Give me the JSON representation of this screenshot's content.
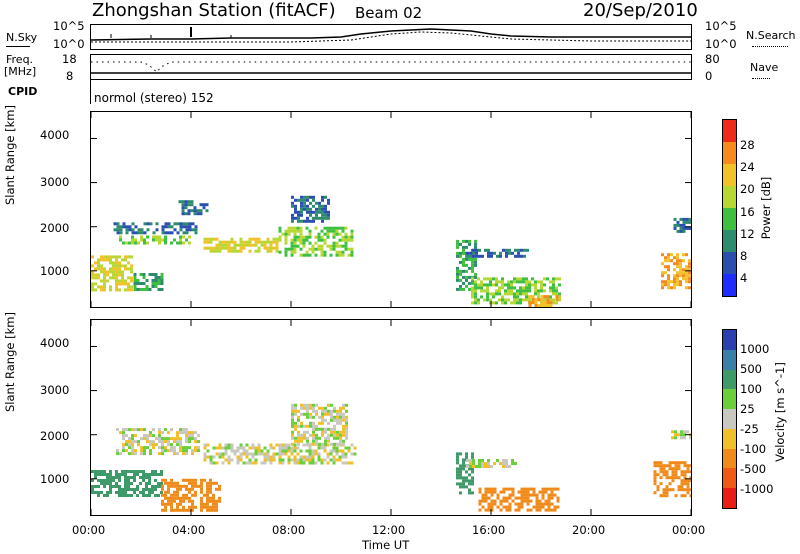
{
  "header": {
    "title": "Zhongshan Station (fitACF)",
    "beam": "Beam 02",
    "date": "20/Sep/2010"
  },
  "top_panels": {
    "nsky_label": "N.Sky",
    "nsearch_label": "N.Search",
    "nsky_ticks": [
      "10^5",
      "10^0"
    ],
    "nsearch_ticks": [
      "10^5",
      "10^0"
    ],
    "freq_label_line1": "Freq.",
    "freq_label_line2": "[MHz]",
    "freq_ticks": [
      "18",
      "8"
    ],
    "nave_label": "Nave",
    "nave_ticks": [
      "80",
      "0"
    ],
    "cpid_label": "CPID",
    "cpid_text": "normol (stereo) 152"
  },
  "axes": {
    "ylabel": "Slant Range [km]",
    "yticks": [
      "4000",
      "3000",
      "2000",
      "1000"
    ],
    "xticks": [
      "00:00",
      "04:00",
      "08:00",
      "12:00",
      "16:00",
      "20:00",
      "00:00"
    ],
    "xlabel": "Time UT"
  },
  "colorbars": {
    "power_label": "Power [dB]",
    "power_ticks": [
      "28",
      "24",
      "20",
      "16",
      "12",
      "8",
      "4"
    ],
    "power_colors": [
      "#1f2bff",
      "#2b4fb0",
      "#2e8c6e",
      "#3fbf3f",
      "#b7d834",
      "#f2c22a",
      "#f58a1f",
      "#ef2a1a"
    ],
    "velocity_label": "Velocity [m s^-1]",
    "velocity_ticks": [
      "1000",
      "500",
      "100",
      "25",
      "-25",
      "-100",
      "-500",
      "-1000"
    ],
    "velocity_colors": [
      "#2c3fb0",
      "#3a7fa8",
      "#3f9a6a",
      "#6acf3a",
      "#c8c8c0",
      "#f0c02a",
      "#f08a1a",
      "#f05a14",
      "#e81e14"
    ]
  },
  "chart_data": [
    {
      "type": "heatmap",
      "title": "",
      "xlabel": "Time UT",
      "ylabel": "Slant Range [km]",
      "xlim": [
        0,
        24
      ],
      "ylim": [
        180,
        4600
      ],
      "colorbar_label": "Power [dB]",
      "regions": [
        {
          "t0": 0.0,
          "t1": 1.6,
          "r0": 550,
          "r1": 1350,
          "value": 20
        },
        {
          "t0": 0.9,
          "t1": 4.2,
          "r0": 1850,
          "r1": 2100,
          "value": 8
        },
        {
          "t0": 1.0,
          "t1": 4.0,
          "r0": 1600,
          "r1": 1800,
          "value": 16
        },
        {
          "t0": 1.7,
          "t1": 2.8,
          "r0": 550,
          "r1": 950,
          "value": 12
        },
        {
          "t0": 3.5,
          "t1": 4.6,
          "r0": 2300,
          "r1": 2600,
          "value": 8
        },
        {
          "t0": 4.5,
          "t1": 7.5,
          "r0": 1450,
          "r1": 1750,
          "value": 20
        },
        {
          "t0": 7.5,
          "t1": 10.5,
          "r0": 1350,
          "r1": 2000,
          "value": 16
        },
        {
          "t0": 8.0,
          "t1": 9.5,
          "r0": 2100,
          "r1": 2700,
          "value": 8
        },
        {
          "t0": 14.6,
          "t1": 15.4,
          "r0": 600,
          "r1": 1700,
          "value": 12
        },
        {
          "t0": 15.0,
          "t1": 17.5,
          "r0": 1300,
          "r1": 1500,
          "value": 8
        },
        {
          "t0": 15.2,
          "t1": 18.8,
          "r0": 250,
          "r1": 850,
          "value": 16
        },
        {
          "t0": 17.5,
          "t1": 18.6,
          "r0": 200,
          "r1": 450,
          "value": 24
        },
        {
          "t0": 22.8,
          "t1": 24.0,
          "r0": 650,
          "r1": 1400,
          "value": 24
        },
        {
          "t0": 23.3,
          "t1": 24.0,
          "r0": 1900,
          "r1": 2200,
          "value": 8
        }
      ]
    },
    {
      "type": "heatmap",
      "title": "",
      "xlabel": "Time UT",
      "ylabel": "Slant Range [km]",
      "xlim": [
        0,
        24
      ],
      "ylim": [
        180,
        4600
      ],
      "colorbar_label": "Velocity [m s^-1]",
      "regions": [
        {
          "t0": 0.0,
          "t1": 2.8,
          "r0": 600,
          "r1": 1200,
          "value": 200
        },
        {
          "t0": 1.0,
          "t1": 4.3,
          "r0": 1550,
          "r1": 2150,
          "value": 0
        },
        {
          "t0": 2.8,
          "t1": 5.2,
          "r0": 300,
          "r1": 1000,
          "value": -300
        },
        {
          "t0": 4.5,
          "t1": 10.6,
          "r0": 1350,
          "r1": 1800,
          "value": 0
        },
        {
          "t0": 8.0,
          "t1": 10.2,
          "r0": 1800,
          "r1": 2700,
          "value": 0
        },
        {
          "t0": 14.6,
          "t1": 15.3,
          "r0": 700,
          "r1": 1600,
          "value": 200
        },
        {
          "t0": 15.5,
          "t1": 18.7,
          "r0": 300,
          "r1": 800,
          "value": -200
        },
        {
          "t0": 15.0,
          "t1": 17.0,
          "r0": 1250,
          "r1": 1450,
          "value": 0
        },
        {
          "t0": 22.5,
          "t1": 24.0,
          "r0": 600,
          "r1": 1400,
          "value": -200
        },
        {
          "t0": 23.2,
          "t1": 24.0,
          "r0": 1900,
          "r1": 2100,
          "value": 0
        }
      ]
    }
  ]
}
